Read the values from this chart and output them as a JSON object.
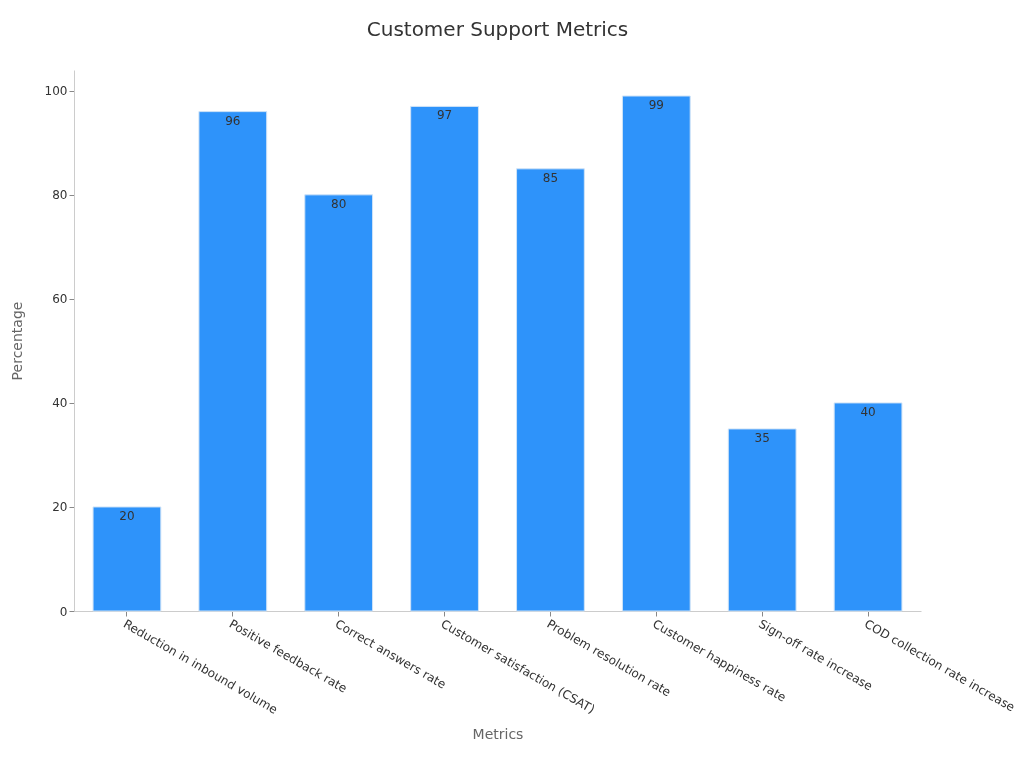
{
  "chart_data": {
    "type": "bar",
    "title": "Customer Support Metrics",
    "xlabel": "Metrics",
    "ylabel": "Percentage",
    "categories": [
      "Reduction in inbound volume",
      "Positive feedback rate",
      "Correct answers rate",
      "Customer satisfaction (CSAT)",
      "Problem resolution rate",
      "Customer happiness rate",
      "Sign-off rate increase",
      "COD collection rate increase"
    ],
    "values": [
      20,
      96,
      80,
      97,
      85,
      99,
      35,
      40
    ],
    "color": "#2e93fa",
    "ylim": [
      0,
      104
    ],
    "yticks": [
      0,
      20,
      40,
      60,
      80,
      100
    ],
    "grid": false,
    "data_labels": true
  }
}
